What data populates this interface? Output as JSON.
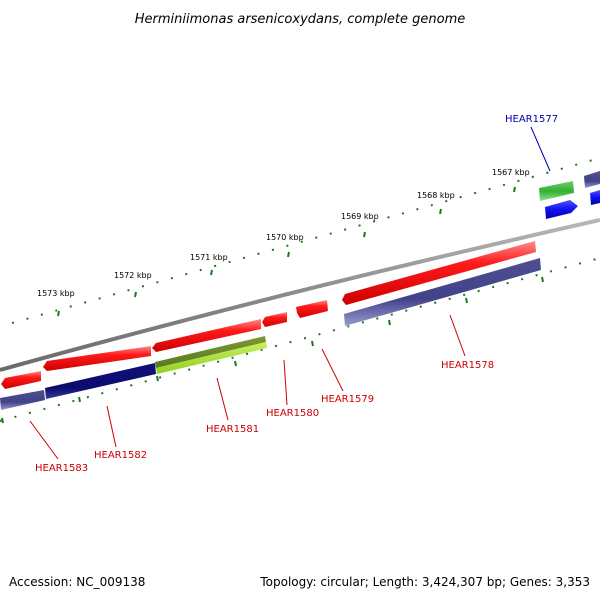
{
  "title": "Herminiimonas arsenicoxydans, complete genome",
  "footer": {
    "accession": "Accession: NC_009138",
    "summary": "Topology: circular; Length: 3,424,307 bp; Genes: 3,353"
  },
  "scale_labels": [
    "1573 kbp",
    "1572 kbp",
    "1571 kbp",
    "1570 kbp",
    "1569 kbp",
    "1568 kbp",
    "1567 kbp"
  ],
  "gene_labels": [
    {
      "name": "HEAR1577",
      "color": "#0000aa"
    },
    {
      "name": "HEAR1578",
      "color": "#cc0000"
    },
    {
      "name": "HEAR1579",
      "color": "#cc0000"
    },
    {
      "name": "HEAR1580",
      "color": "#cc0000"
    },
    {
      "name": "HEAR1581",
      "color": "#cc0000"
    },
    {
      "name": "HEAR1582",
      "color": "#cc0000"
    },
    {
      "name": "HEAR1583",
      "color": "#cc0000"
    }
  ],
  "colors": {
    "backbone": "#888888",
    "tick": "#1a7a1a",
    "forward_gene": "#ee1111",
    "reverse_gene_purple": "#4a4a90",
    "reverse_gene_navy": "#10107a",
    "rna_green": "#30b030",
    "rna_lime": "#a8e040",
    "blue_gene": "#1010ee",
    "olive": "#6a8a2a"
  }
}
